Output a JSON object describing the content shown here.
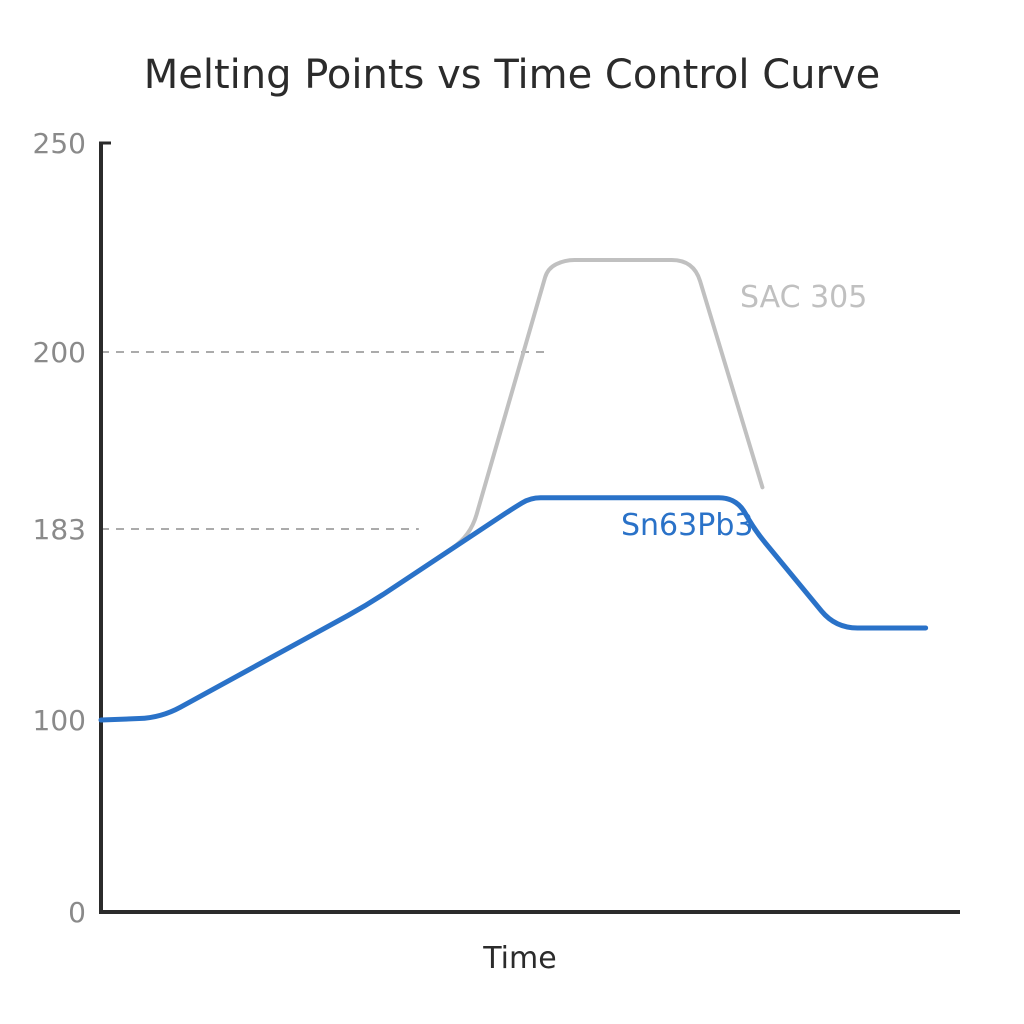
{
  "chart_data": {
    "type": "line",
    "title": "Melting Points vs Time Control Curve",
    "xlabel": "Time",
    "ylabel": "",
    "y_ticks": [
      0,
      100,
      183,
      200,
      250
    ],
    "y_tick_labels": [
      "0",
      "100",
      "183",
      "200",
      "250"
    ],
    "ylim": [
      0,
      250
    ],
    "xlim": [
      0,
      100
    ],
    "reference_lines": [
      {
        "y": 200,
        "x_end": 52
      },
      {
        "y": 183,
        "x_end": 37
      }
    ],
    "series": [
      {
        "name": "SAC 305",
        "color": "#c0c0c0",
        "x": [
          0,
          7,
          31,
          43,
          52,
          54,
          69,
          77
        ],
        "y": [
          100,
          101,
          150,
          180,
          220,
          222,
          222,
          187
        ]
      },
      {
        "name": "Sn63Pb3",
        "color": "#2a72c8",
        "x": [
          0,
          7,
          31,
          48,
          50,
          74,
          76,
          85.5,
          96
        ],
        "y": [
          100,
          101,
          150,
          185,
          186,
          186,
          183,
          140,
          140
        ]
      }
    ]
  }
}
